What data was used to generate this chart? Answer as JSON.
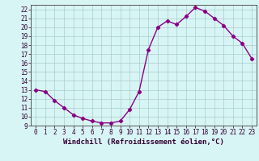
{
  "x": [
    0,
    1,
    2,
    3,
    4,
    5,
    6,
    7,
    8,
    9,
    10,
    11,
    12,
    13,
    14,
    15,
    16,
    17,
    18,
    19,
    20,
    21,
    22,
    23
  ],
  "y": [
    13.0,
    12.8,
    11.8,
    11.0,
    10.2,
    9.8,
    9.5,
    9.3,
    9.3,
    9.5,
    10.8,
    12.8,
    17.5,
    20.0,
    20.7,
    20.3,
    21.2,
    22.2,
    21.8,
    21.0,
    20.2,
    19.0,
    18.2,
    16.5
  ],
  "line_color": "#880088",
  "marker": "D",
  "marker_size": 2.2,
  "bg_color": "#d8f5f5",
  "grid_color": "#aacccc",
  "xlabel": "Windchill (Refroidissement éolien,°C)",
  "xlim": [
    -0.5,
    23.5
  ],
  "ylim": [
    9.0,
    22.5
  ],
  "yticks": [
    9,
    10,
    11,
    12,
    13,
    14,
    15,
    16,
    17,
    18,
    19,
    20,
    21,
    22
  ],
  "xticks": [
    0,
    1,
    2,
    3,
    4,
    5,
    6,
    7,
    8,
    9,
    10,
    11,
    12,
    13,
    14,
    15,
    16,
    17,
    18,
    19,
    20,
    21,
    22,
    23
  ],
  "tick_fontsize": 5.5,
  "xlabel_fontsize": 6.5,
  "line_width": 1.0
}
